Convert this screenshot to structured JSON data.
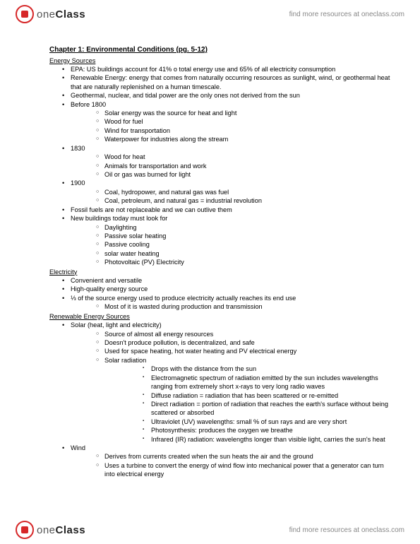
{
  "brand": {
    "part1": "one",
    "part2": "Class",
    "tagline": "find more resources at oneclass.com"
  },
  "doc": {
    "title": "Chapter 1: Environmental Conditions (pg. 5-12)",
    "sections": [
      {
        "heading": "Energy Sources",
        "items": [
          {
            "t": "EPA: US buildings account for 41% o total energy use and 65% of all electricity consumption"
          },
          {
            "t": "Renewable Energy: energy that comes from naturally occurring resources as sunlight, wind, or geothermal heat that are naturally replenished on a human timescale."
          },
          {
            "t": "Geothermal, nuclear, and tidal power are the only ones not derived from the sun"
          },
          {
            "t": "Before 1800",
            "sub": [
              {
                "t": "Solar energy was the source for heat and light"
              },
              {
                "t": "Wood for fuel"
              },
              {
                "t": "Wind for transportation"
              },
              {
                "t": "Waterpower for industries along the stream"
              }
            ]
          },
          {
            "t": "1830",
            "sub": [
              {
                "t": "Wood for heat"
              },
              {
                "t": "Animals for transportation and work"
              },
              {
                "t": "Oil or gas was burned for light"
              }
            ]
          },
          {
            "t": "1900",
            "sub": [
              {
                "t": "Coal, hydropower, and natural gas was fuel"
              },
              {
                "t": "Coal, petroleum, and natural gas = industrial revolution"
              }
            ]
          },
          {
            "t": "Fossil fuels are not replaceable and we can outlive them"
          },
          {
            "t": "New buildings today must look for",
            "sub": [
              {
                "t": "Daylighting"
              },
              {
                "t": "Passive solar heating"
              },
              {
                "t": "Passive cooling"
              },
              {
                "t": "solar water heating"
              },
              {
                "t": "Photovoltaic (PV) Electricity"
              }
            ]
          }
        ]
      },
      {
        "heading": "Electricity",
        "items": [
          {
            "t": "Convenient and versatile"
          },
          {
            "t": "High-quality energy source"
          },
          {
            "t": "⅓ of the source energy used to produce electricity actually reaches its end use",
            "sub": [
              {
                "t": "Most of it is wasted during production and transmission"
              }
            ]
          }
        ]
      },
      {
        "heading": "Renewable Energy Sources",
        "items": [
          {
            "t": "Solar (heat, light and electricity)",
            "sub": [
              {
                "t": "Source of almost all energy resources"
              },
              {
                "t": "Doesn't produce pollution, is decentralized, and safe"
              },
              {
                "t": "Used for space heating, hot water heating and PV electrical energy"
              },
              {
                "t": "Solar radiation",
                "sub": [
                  {
                    "t": "Drops with the distance from the sun"
                  },
                  {
                    "t": "Electromagnetic spectrum of radiation emitted by the sun includes wavelengths ranging from extremely short x-rays to very long radio waves"
                  },
                  {
                    "t": "Diffuse radiation = radiation that has been scattered or re-emitted"
                  },
                  {
                    "t": "Direct radiation = portion of radiation that reaches the earth's surface without being scattered or absorbed"
                  },
                  {
                    "t": "Ultraviolet (UV) wavelengths: small % of sun rays and are very short"
                  },
                  {
                    "t": "Photosynthesis: produces the oxygen we breathe"
                  },
                  {
                    "t": "Infrared (IR) radiation: wavelengths longer than visible light, carries the sun's heat"
                  }
                ]
              }
            ]
          },
          {
            "t": "Wind",
            "sub": [
              {
                "t": "Derives from currents created when the sun heats the air and the ground"
              },
              {
                "t": "Uses a turbine to convert the energy of wind flow into mechanical power that a generator can turn into electrical energy"
              }
            ]
          }
        ]
      }
    ]
  }
}
